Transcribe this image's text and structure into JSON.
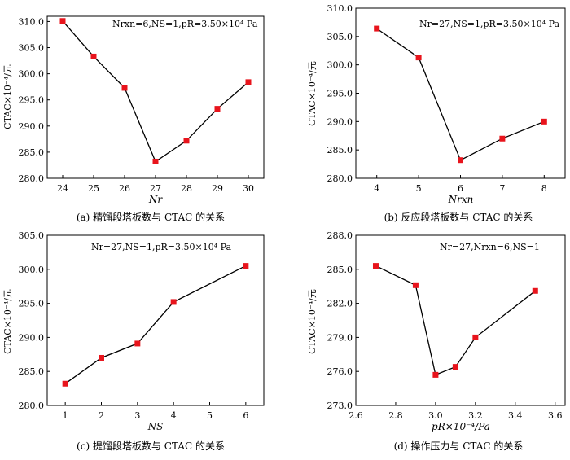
{
  "chart_data": [
    {
      "type": "line",
      "x": [
        24,
        25,
        26,
        27,
        28,
        29,
        30
      ],
      "values": [
        310.1,
        303.3,
        297.3,
        283.2,
        287.2,
        293.3,
        298.4
      ],
      "xlim": [
        23.5,
        30.5
      ],
      "ylim": [
        280.0,
        311.0
      ],
      "xticks": [
        "24",
        "25",
        "26",
        "27",
        "28",
        "29",
        "30"
      ],
      "yticks": [
        "280.0",
        "285.0",
        "290.0",
        "295.0",
        "300.0",
        "305.0",
        "310.0"
      ],
      "xlabel": "Nr",
      "ylabel": "CTAC×10⁻⁴/元",
      "annotation": "Nrxn=6,NS=1,pR=3.50×10⁴ Pa",
      "caption": "(a) 精馏段塔板数与 CTAC 的关系"
    },
    {
      "type": "line",
      "x": [
        4,
        5,
        6,
        7,
        8
      ],
      "values": [
        306.4,
        301.3,
        283.2,
        287.0,
        290.0
      ],
      "xlim": [
        3.5,
        8.5
      ],
      "ylim": [
        280.0,
        310.0
      ],
      "xticks": [
        "4",
        "5",
        "6",
        "7",
        "8"
      ],
      "yticks": [
        "280.0",
        "285.0",
        "290.0",
        "295.0",
        "300.0",
        "305.0",
        "310.0"
      ],
      "xlabel": "Nrxn",
      "ylabel": "CTAC×10⁻⁴/元",
      "annotation": "Nr=27,NS=1,pR=3.50×10⁴ Pa",
      "caption": "(b) 反应段塔板数与 CTAC 的关系"
    },
    {
      "type": "line",
      "x": [
        1,
        2,
        3,
        4,
        6
      ],
      "values": [
        283.2,
        287.0,
        289.1,
        295.2,
        300.5
      ],
      "xlim": [
        0.5,
        6.5
      ],
      "ylim": [
        280.0,
        305.0
      ],
      "xticks": [
        "1",
        "2",
        "3",
        "4",
        "5",
        "6"
      ],
      "yticks": [
        "280.0",
        "285.0",
        "290.0",
        "295.0",
        "300.0",
        "305.0"
      ],
      "xlabel": "NS",
      "ylabel": "CTAC×10⁻⁴/元",
      "annotation": "Nr=27,NS=1,pR=3.50×10⁴ Pa",
      "caption": "(c) 提馏段塔板数与 CTAC 的关系"
    },
    {
      "type": "line",
      "x": [
        2.7,
        2.9,
        3.0,
        3.1,
        3.2,
        3.5
      ],
      "values": [
        285.3,
        283.6,
        275.7,
        276.4,
        279.0,
        283.1
      ],
      "xlim": [
        2.6,
        3.65
      ],
      "ylim": [
        273.0,
        288.0
      ],
      "xticks": [
        "2.6",
        "2.8",
        "3.0",
        "3.2",
        "3.4",
        "3.6"
      ],
      "yticks": [
        "273.0",
        "276.0",
        "279.0",
        "282.0",
        "285.0",
        "288.0"
      ],
      "xlabel": "pR×10⁻⁴/Pa",
      "ylabel": "CTAC×10⁻⁴/元",
      "annotation": "Nr=27,Nrxn=6,NS=1",
      "caption": "(d) 操作压力与 CTAC 的关系"
    }
  ],
  "colors": {
    "marker": "#e8141c",
    "line": "#000000"
  }
}
